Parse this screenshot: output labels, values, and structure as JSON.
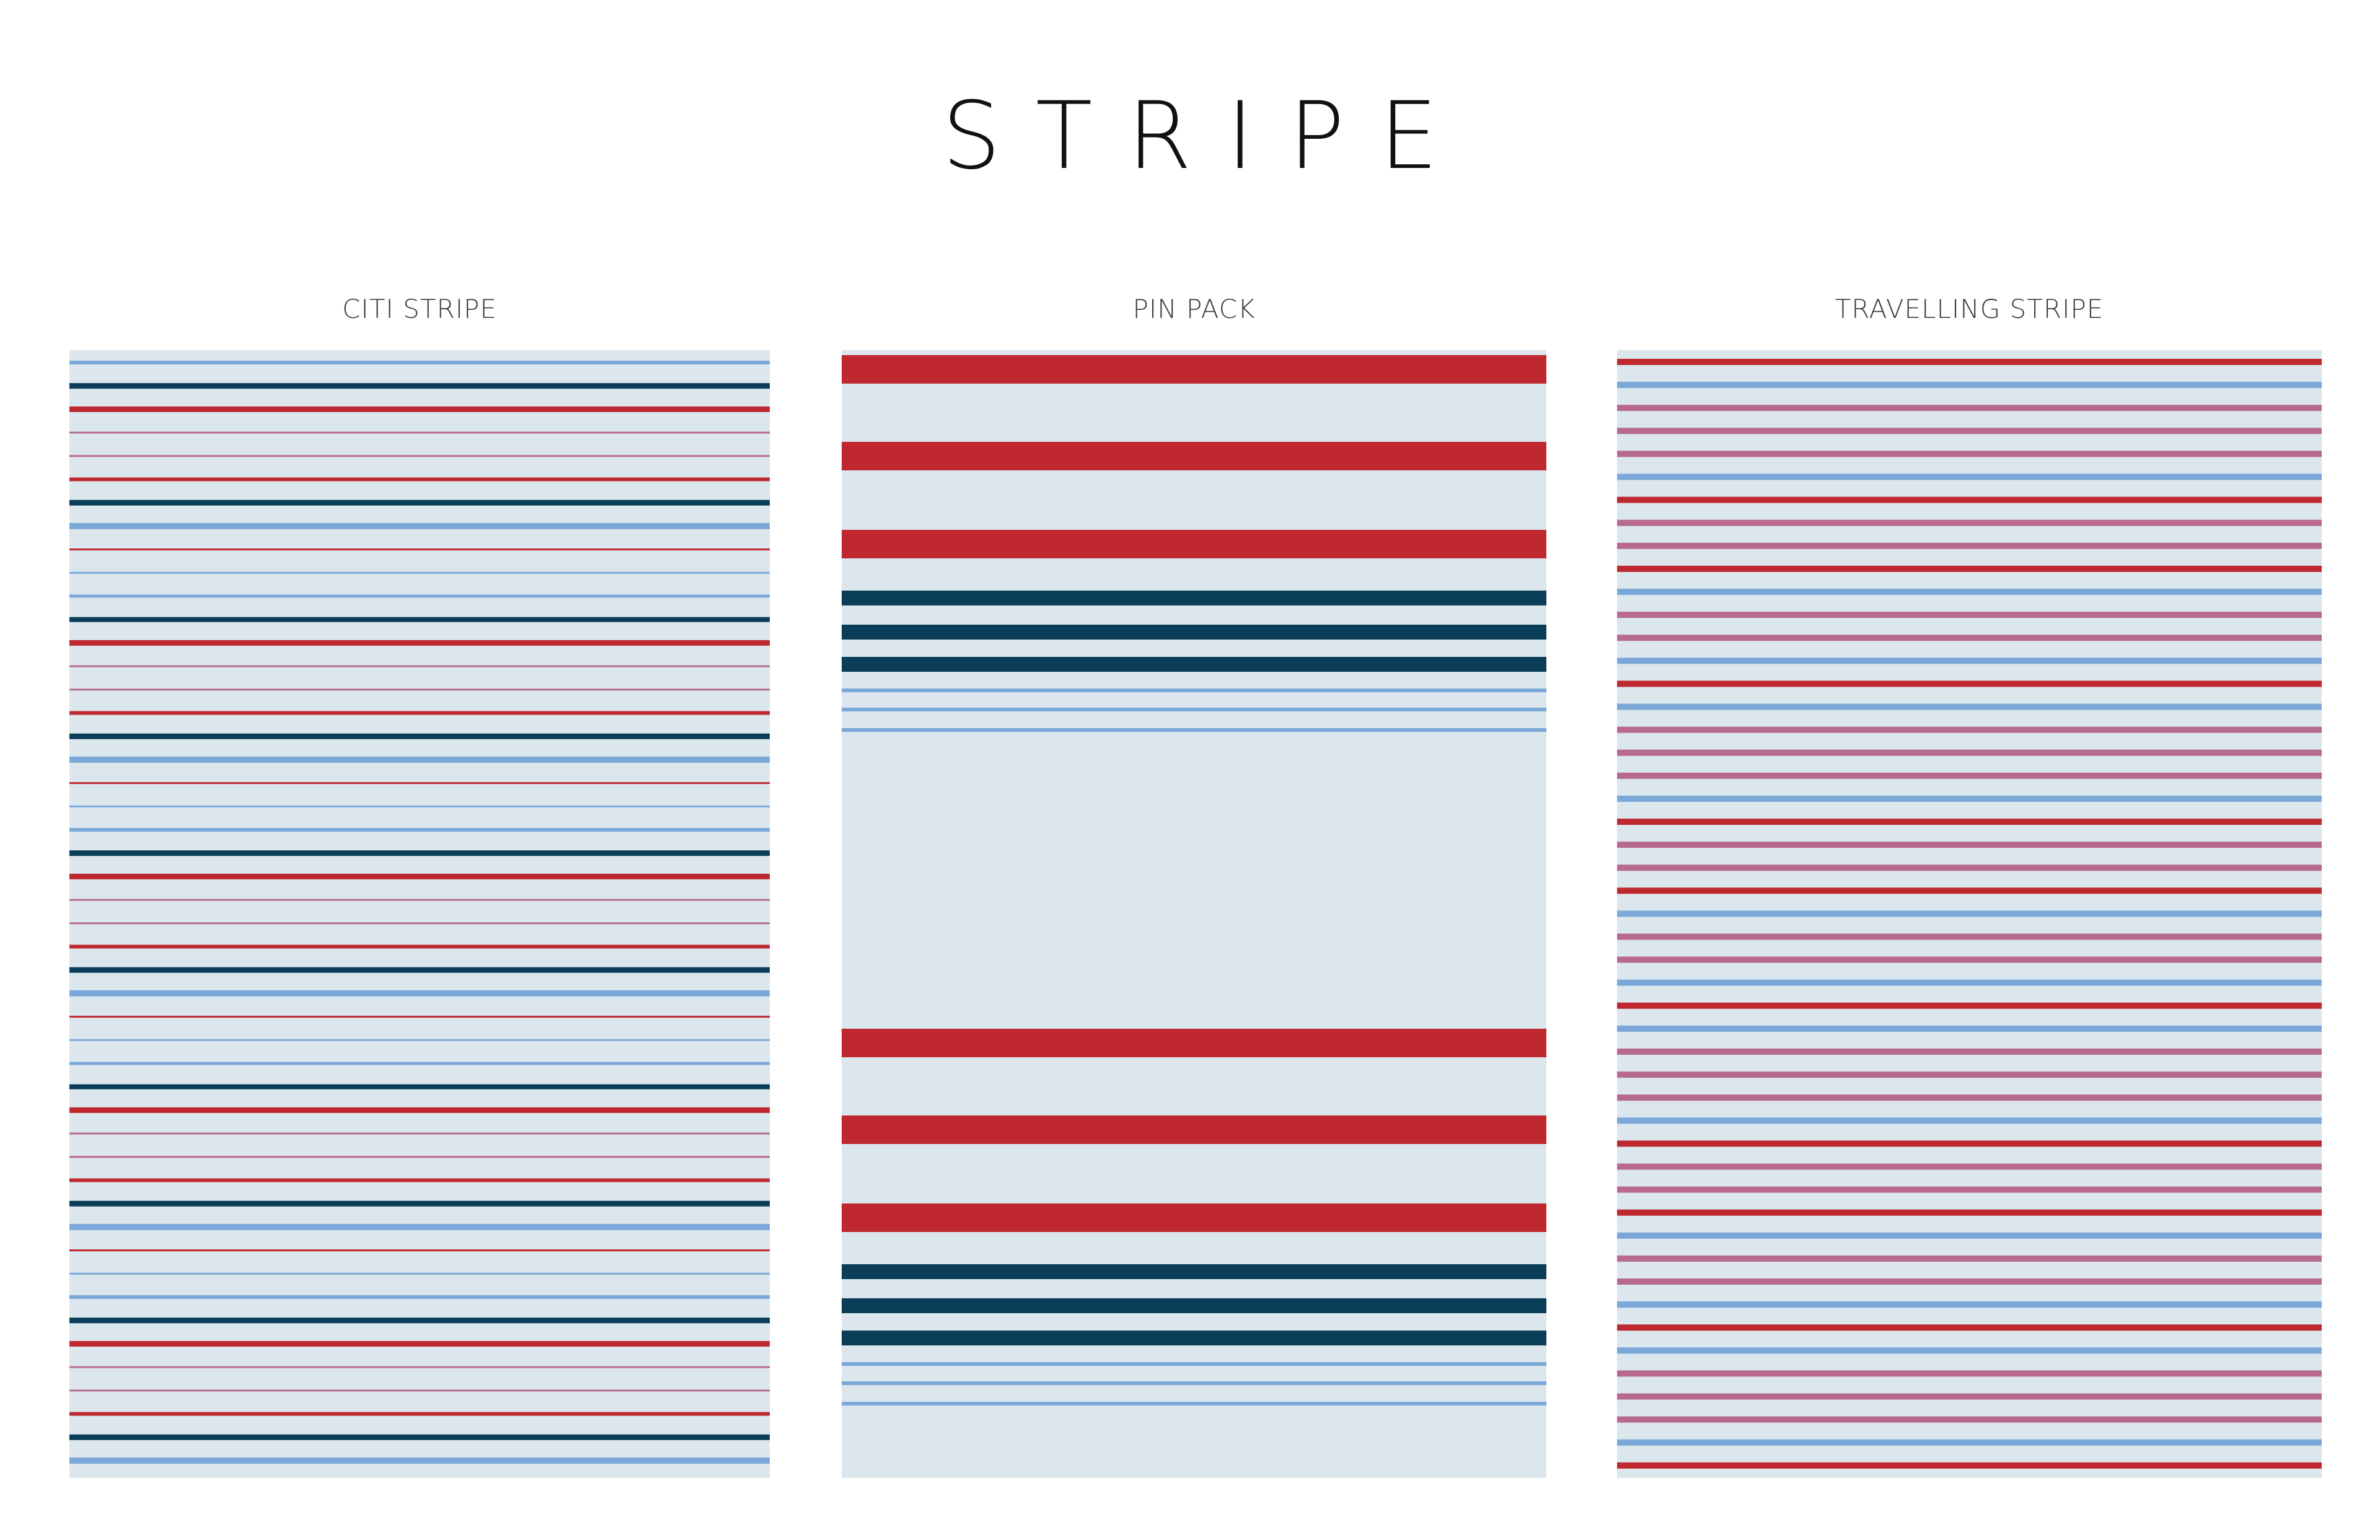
{
  "title": "STRIPE",
  "colors": {
    "background": "#dce6ed",
    "red": "#c0282f",
    "navy": "#0a3d57",
    "light_blue": "#7aa8d8",
    "mauve": "#b76a8d"
  },
  "panels": [
    {
      "id": "citi",
      "label": "CITI STRIPE"
    },
    {
      "id": "pin",
      "label": "PIN PACK"
    },
    {
      "id": "travel",
      "label": "TRAVELLING STRIPE"
    }
  ]
}
